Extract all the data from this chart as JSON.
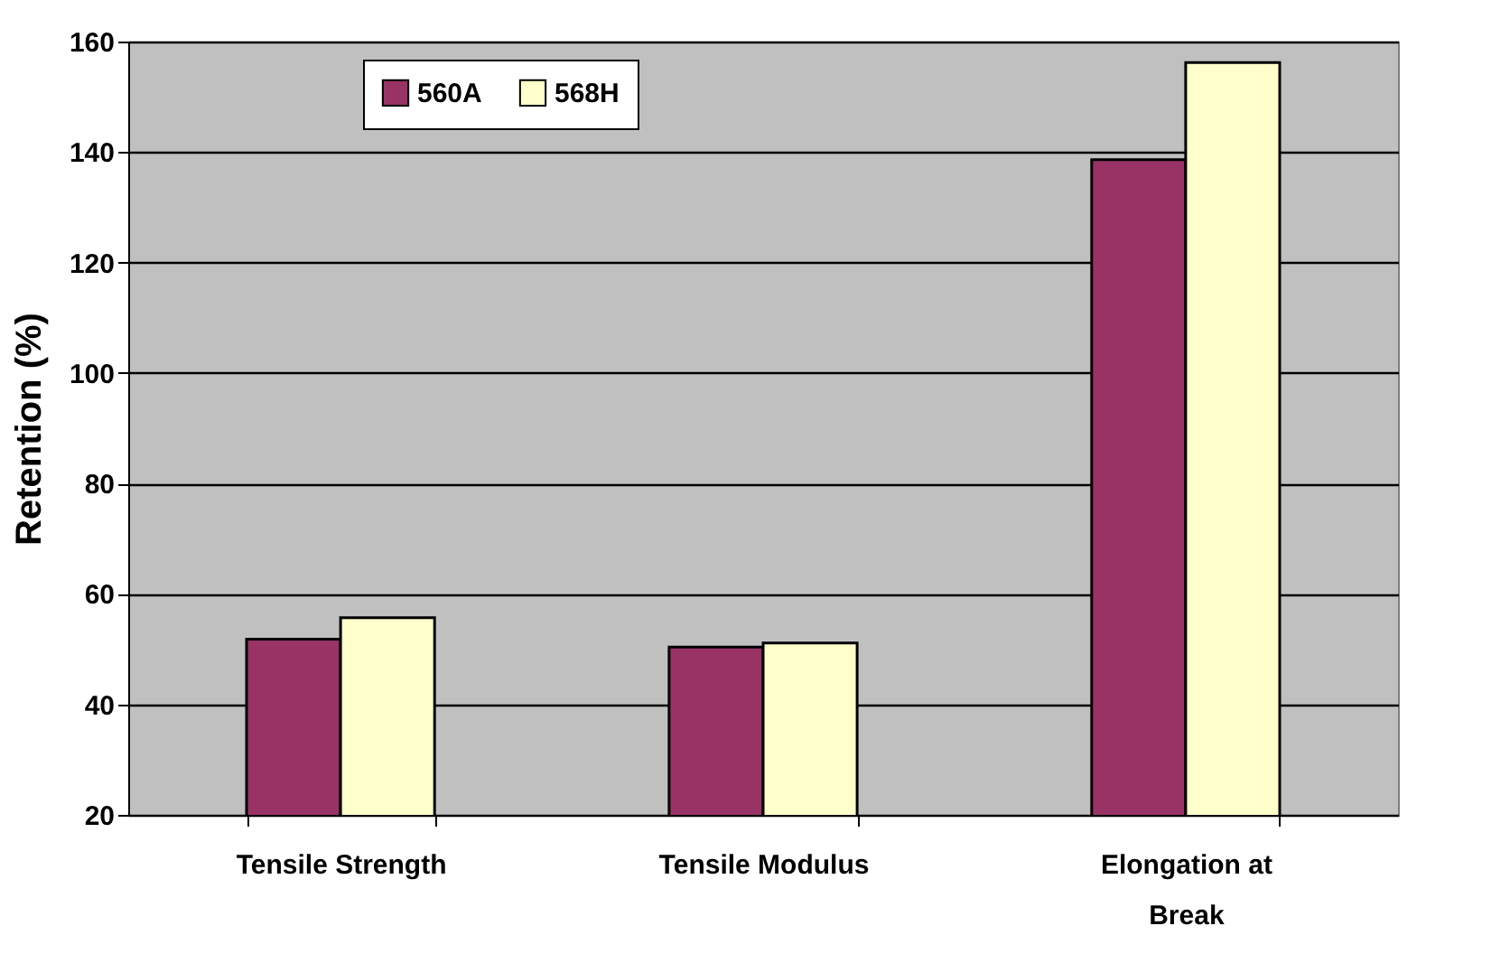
{
  "chart_data": {
    "type": "bar",
    "ylabel": "Retention (%)",
    "categories": [
      "Tensile Strength",
      "Tensile Modulus",
      "Elongation at Break"
    ],
    "series": [
      {
        "name": "560A",
        "color": "#993366",
        "values": [
          51.8,
          50.4,
          138.6
        ]
      },
      {
        "name": "568H",
        "color": "#ffffcc",
        "values": [
          55.7,
          51.1,
          156.2
        ]
      }
    ],
    "ylim": [
      20,
      160
    ],
    "yticks": [
      20,
      40,
      60,
      80,
      100,
      120,
      140,
      160
    ],
    "grid": "y",
    "legend": "top left"
  }
}
